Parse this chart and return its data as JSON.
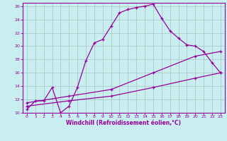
{
  "xlabel": "Windchill (Refroidissement éolien,°C)",
  "bg_color": "#c8eef0",
  "line_color": "#990099",
  "grid_color": "#b0c8c8",
  "xlim": [
    -0.5,
    23.5
  ],
  "ylim": [
    10,
    26.5
  ],
  "xticks": [
    0,
    1,
    2,
    3,
    4,
    5,
    6,
    7,
    8,
    9,
    10,
    11,
    12,
    13,
    14,
    15,
    16,
    17,
    18,
    19,
    20,
    21,
    22,
    23
  ],
  "yticks": [
    10,
    12,
    14,
    16,
    18,
    20,
    22,
    24,
    26
  ],
  "curve1_x": [
    0,
    1,
    2,
    3,
    4,
    5,
    6,
    7,
    8,
    9,
    10,
    11,
    12,
    13,
    14,
    15,
    16,
    17,
    18,
    19,
    20,
    21,
    22,
    23
  ],
  "curve1_y": [
    10.5,
    11.8,
    11.8,
    13.8,
    10.0,
    11.0,
    13.8,
    17.8,
    20.5,
    21.0,
    23.0,
    25.0,
    25.5,
    25.8,
    26.0,
    26.3,
    24.2,
    22.3,
    21.2,
    20.2,
    20.0,
    19.2,
    17.5,
    16.0
  ],
  "curve2_x": [
    0,
    5,
    10,
    15,
    20,
    23
  ],
  "curve2_y": [
    11.5,
    12.5,
    13.5,
    16.0,
    18.5,
    19.2
  ],
  "curve3_x": [
    0,
    5,
    10,
    15,
    20,
    23
  ],
  "curve3_y": [
    11.0,
    11.8,
    12.5,
    13.8,
    15.2,
    16.0
  ],
  "xlabel_fontsize": 5.5,
  "tick_fontsize": 4.5
}
